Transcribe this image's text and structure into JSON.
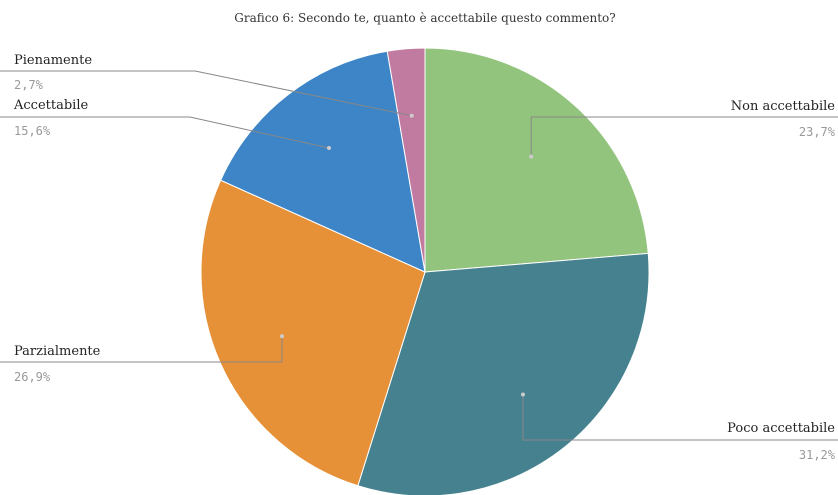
{
  "chart_data": {
    "type": "pie",
    "title": "Grafico 6: Secondo te, quanto è accettabile questo commento?",
    "categories": [
      "Non accettabile",
      "Poco accettabile",
      "Parzialmente",
      "Accettabile",
      "Pienamente"
    ],
    "values": [
      23.7,
      31.2,
      26.9,
      15.6,
      2.7
    ],
    "value_labels": [
      "23,7%",
      "31,2%",
      "26,9%",
      "15,6%",
      "2,7%"
    ],
    "colors": [
      "#93c47d",
      "#45818e",
      "#e69138",
      "#3d85c6",
      "#c27ba0"
    ]
  }
}
